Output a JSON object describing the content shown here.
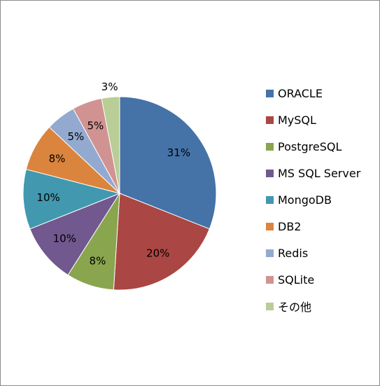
{
  "chart_data": {
    "type": "pie",
    "categories": [
      "ORACLE",
      "MySQL",
      "PostgreSQL",
      "MS SQL Server",
      "MongoDB",
      "DB2",
      "Redis",
      "SQLite",
      "その他"
    ],
    "values": [
      31,
      20,
      8,
      10,
      10,
      8,
      5,
      5,
      3
    ],
    "labels": [
      "31%",
      "20%",
      "8%",
      "10%",
      "10%",
      "8%",
      "5%",
      "5%",
      "3%"
    ],
    "colors": [
      "#4572a7",
      "#aa4643",
      "#89a54e",
      "#71588f",
      "#4198af",
      "#db843d",
      "#93a9cf",
      "#d19392",
      "#b9cd96"
    ],
    "legend_position": "right",
    "start": "top",
    "direction": "clockwise"
  }
}
